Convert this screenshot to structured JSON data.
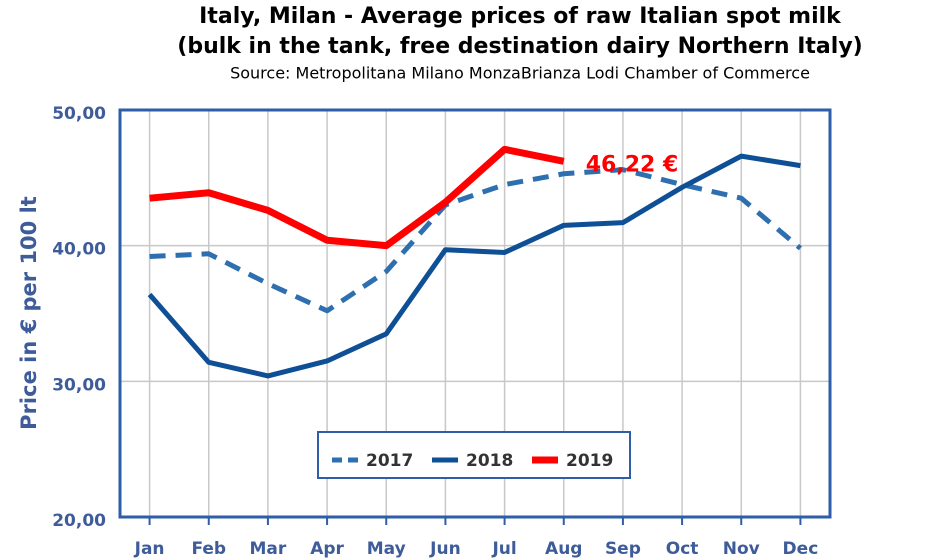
{
  "chart_data": {
    "type": "line",
    "title": "Italy, Milan - Average prices of raw Italian spot milk",
    "subtitle": "(bulk in the tank, free destination dairy Northern Italy)",
    "source": "Source: Metropolitana Milano MonzaBrianza Lodi Chamber of Commerce",
    "y_label": "Price in € per 100 lt",
    "categories": [
      "Jan",
      "Feb",
      "Mar",
      "Apr",
      "May",
      "Jun",
      "Jul",
      "Aug",
      "Sep",
      "Oct",
      "Nov",
      "Dec"
    ],
    "series": [
      {
        "name": "2017",
        "color": "#2e6fb0",
        "dashed": true,
        "values": [
          39.2,
          39.4,
          37.2,
          35.2,
          38.1,
          43.0,
          44.5,
          45.3,
          45.6,
          44.5,
          43.5,
          39.8
        ]
      },
      {
        "name": "2018",
        "color": "#0e4f96",
        "dashed": false,
        "values": [
          36.4,
          31.4,
          30.4,
          31.5,
          33.5,
          39.7,
          39.5,
          41.5,
          41.7,
          44.3,
          46.6,
          45.9
        ]
      },
      {
        "name": "2019",
        "color": "#ff0000",
        "dashed": false,
        "values": [
          43.5,
          43.9,
          42.6,
          40.4,
          40.0,
          43.2,
          47.1,
          46.22,
          null,
          null,
          null,
          null
        ]
      }
    ],
    "annotation": "46,22 €",
    "ylim": [
      20,
      50
    ],
    "yticks": [
      {
        "value": 20,
        "label": "20,00"
      },
      {
        "value": 30,
        "label": "30,00"
      },
      {
        "value": 40,
        "label": "40,00"
      },
      {
        "value": 50,
        "label": "50,00"
      }
    ],
    "grid": true
  }
}
